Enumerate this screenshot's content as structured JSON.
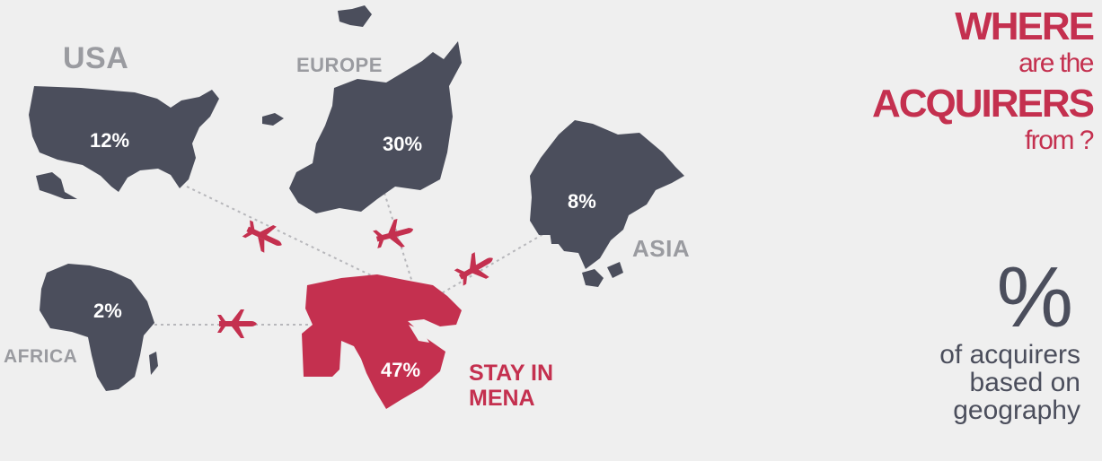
{
  "title": {
    "line1": "WHERE",
    "line2": "are the",
    "line3": "ACQUIRERS",
    "line4": "from ?"
  },
  "legend": {
    "symbol": "%",
    "text": "of acquirers based on geography"
  },
  "regions": {
    "usa": {
      "label": "USA",
      "percent": "12%"
    },
    "europe": {
      "label": "EUROPE",
      "percent": "30%"
    },
    "asia": {
      "label": "ASIA",
      "percent": "8%"
    },
    "africa": {
      "label": "AFRICA",
      "percent": "2%"
    },
    "mena": {
      "label": "STAY IN MENA",
      "percent": "47%"
    }
  },
  "colors": {
    "background": "#efefef",
    "land": "#4b4e5c",
    "accent": "#c4304f",
    "region_label": "#9a9ba0"
  },
  "icons": [
    "airplane-icon"
  ]
}
